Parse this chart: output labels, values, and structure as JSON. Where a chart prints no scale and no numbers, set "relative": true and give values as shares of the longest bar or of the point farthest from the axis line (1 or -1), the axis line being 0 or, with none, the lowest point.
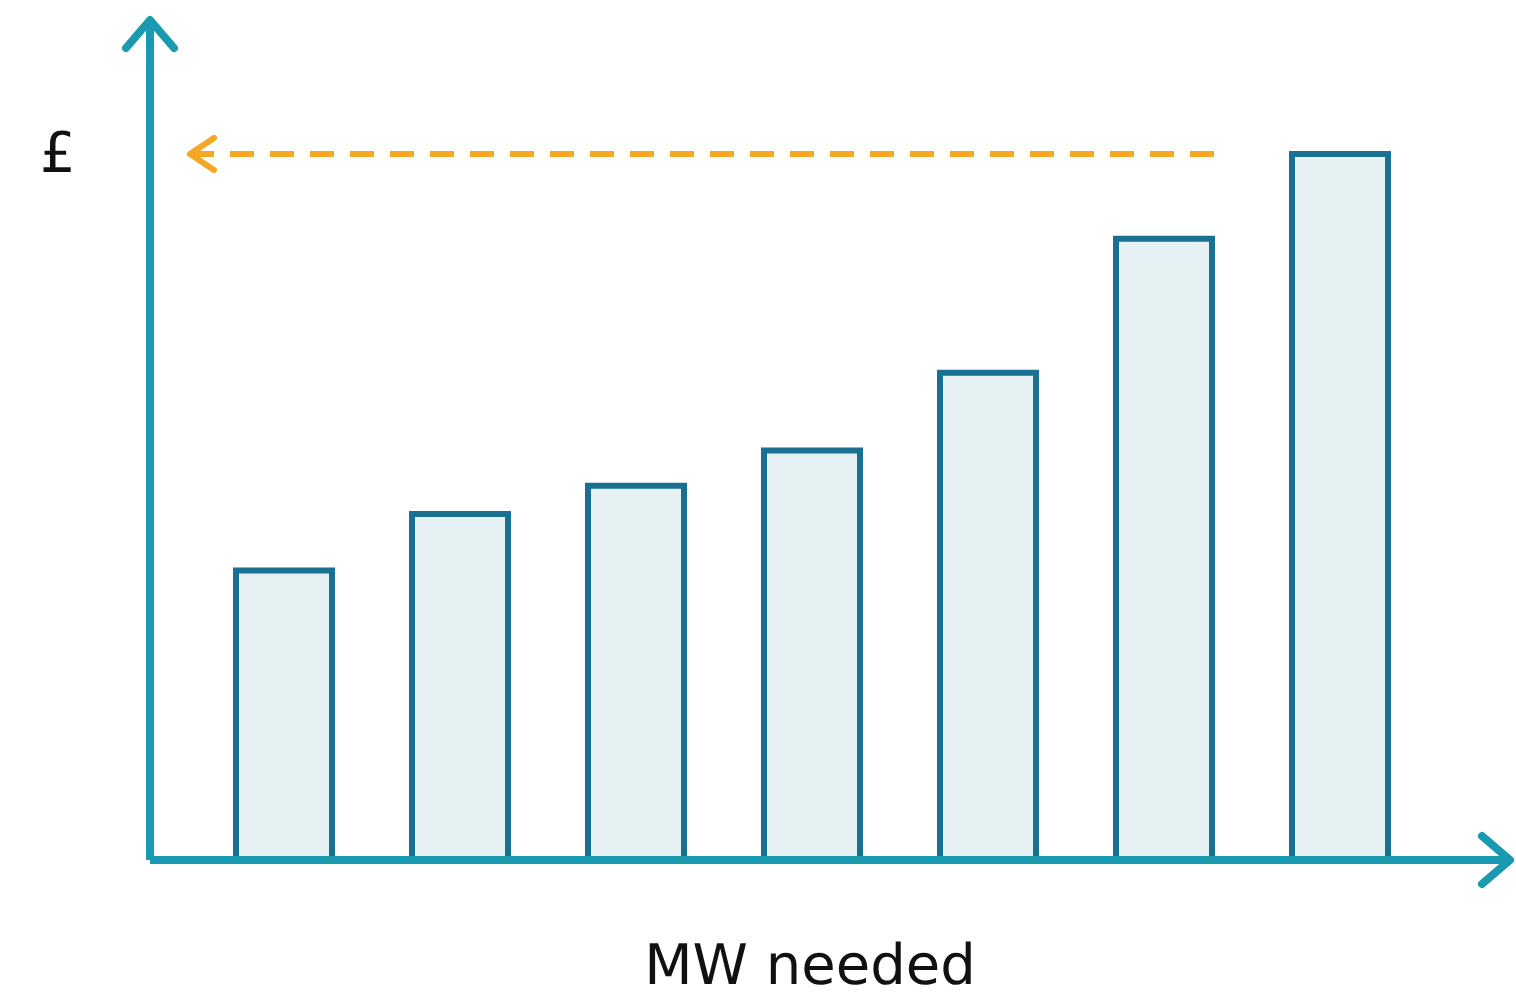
{
  "chart_data": {
    "type": "bar",
    "relative": true,
    "ylabel": "£",
    "xlabel": "MW needed",
    "categories": [
      null,
      null,
      null,
      null,
      null,
      null,
      null
    ],
    "values": [
      0.41,
      0.49,
      0.53,
      0.58,
      0.69,
      0.88,
      1
    ],
    "color": "#e6f1f3",
    "ref_lines": [
      {
        "axis": "y",
        "value": 1,
        "color": "#f5a623",
        "line_style": "dashed"
      }
    ]
  }
}
